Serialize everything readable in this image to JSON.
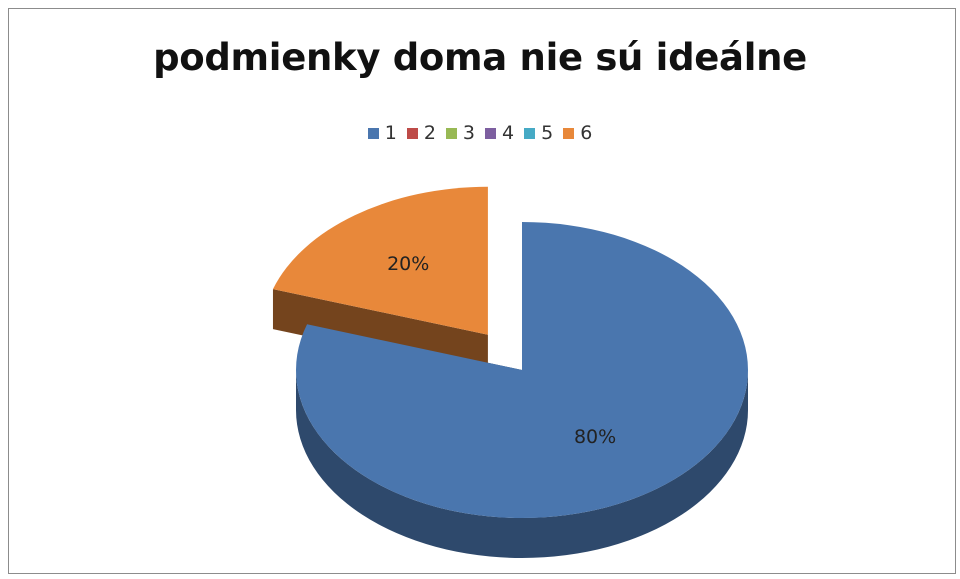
{
  "chart_data": {
    "type": "pie",
    "title": "podmienky doma nie sú ideálne",
    "categories": [
      "1",
      "2",
      "3",
      "4",
      "5",
      "6"
    ],
    "values": [
      80,
      0,
      0,
      0,
      0,
      20
    ],
    "data_labels": [
      "80%",
      "",
      "",
      "",
      "",
      "20%"
    ],
    "colors": [
      "#4a76ae",
      "#be4b48",
      "#98b954",
      "#7d5fa0",
      "#46aac5",
      "#e8883a"
    ],
    "legend_position": "top",
    "style": "3d-exploded"
  }
}
